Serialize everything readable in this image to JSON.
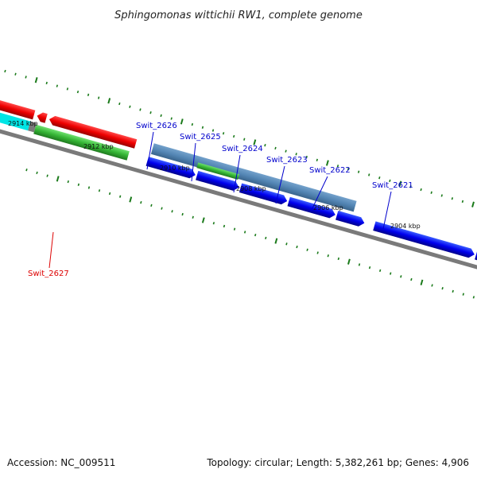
{
  "title": "Sphingomonas wittichii RW1, complete genome",
  "footer": {
    "accession": "Accession: NC_009511",
    "topology": "Topology: circular; Length: 5,382,261 bp; Genes: 4,906"
  },
  "ticks": [
    {
      "label": "2914 kbp"
    },
    {
      "label": "2912 kbp"
    },
    {
      "label": "2910 kbp"
    },
    {
      "label": "2908 kbp"
    },
    {
      "label": "2906 kbp"
    },
    {
      "label": "2904 kbp"
    }
  ],
  "genes": [
    {
      "label": "Swit_2626",
      "color": "#0000cc"
    },
    {
      "label": "Swit_2625",
      "color": "#0000cc"
    },
    {
      "label": "Swit_2624",
      "color": "#0000cc"
    },
    {
      "label": "Swit_2623",
      "color": "#0000cc"
    },
    {
      "label": "Swit_2622",
      "color": "#0000cc"
    },
    {
      "label": "Swit_2621",
      "color": "#0000cc"
    },
    {
      "label": "Swit_2627",
      "color": "#dd0000"
    }
  ],
  "colors": {
    "forward_cds": "#0000ee",
    "reverse_cds": "#ee0000",
    "gene_feature": "#3db83d",
    "highlight_region": "#4a7fb0",
    "backbone": "#808080",
    "tick": "#1a7a1a",
    "cyan_feature": "#00e5e5",
    "pink_feature": "#e88080"
  }
}
